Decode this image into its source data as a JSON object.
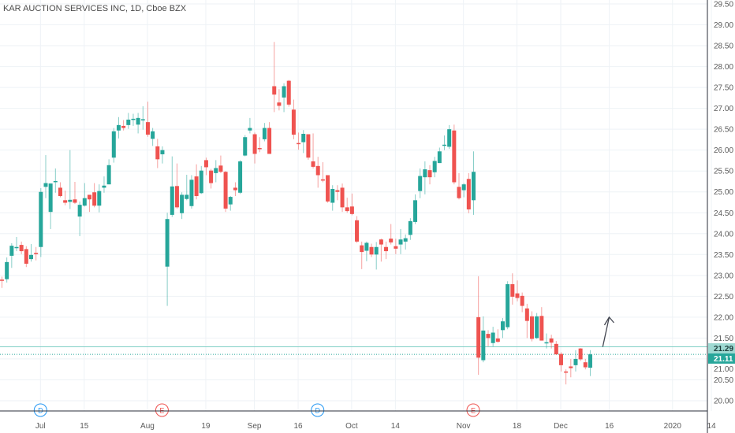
{
  "header": {
    "title": "KAR AUCTION SERVICES INC, 1D, Cboe BZX"
  },
  "colors": {
    "up": "#26a69a",
    "down": "#ef5350",
    "grid": "#eef2f6",
    "line_drawn": "#7fcfc6",
    "arrow": "#434651",
    "dividend": "#2196f3",
    "earnings": "#ef5350"
  },
  "chart_data": {
    "type": "candlestick",
    "title": "KAR AUCTION SERVICES INC, 1D, Cboe BZX",
    "ylim": [
      19.6,
      29.6
    ],
    "y_ticks": [
      "20.00",
      "20.50",
      "21.00",
      "21.50",
      "22.00",
      "22.50",
      "23.00",
      "23.50",
      "24.00",
      "24.50",
      "25.00",
      "25.50",
      "26.00",
      "26.50",
      "27.00",
      "27.50",
      "28.00",
      "28.50",
      "29.00",
      "29.50"
    ],
    "x_ticks": [
      {
        "label": "Jul",
        "date": "2019-07-01"
      },
      {
        "label": "15",
        "date": "2019-07-15"
      },
      {
        "label": "Aug",
        "date": "2019-08-01"
      },
      {
        "label": "19",
        "date": "2019-08-19"
      },
      {
        "label": "Sep",
        "date": "2019-09-03"
      },
      {
        "label": "16",
        "date": "2019-09-16"
      },
      {
        "label": "Oct",
        "date": "2019-10-01"
      },
      {
        "label": "14",
        "date": "2019-10-14"
      },
      {
        "label": "Nov",
        "date": "2019-11-01"
      },
      {
        "label": "18",
        "date": "2019-11-18"
      },
      {
        "label": "Dec",
        "date": "2019-12-02"
      },
      {
        "label": "16",
        "date": "2019-12-16"
      },
      {
        "label": "2020",
        "date": "2020-01-02"
      },
      {
        "label": "14",
        "date": "2020-01-14"
      }
    ],
    "columns": [
      "date",
      "open",
      "high",
      "low",
      "close"
    ],
    "candles": [
      [
        "2019-06-19",
        22.9,
        22.97,
        22.7,
        22.87
      ],
      [
        "2019-06-20",
        22.91,
        23.43,
        22.83,
        23.32
      ],
      [
        "2019-06-21",
        23.47,
        23.77,
        23.18,
        23.71
      ],
      [
        "2019-06-24",
        23.66,
        23.92,
        23.58,
        23.68
      ],
      [
        "2019-06-25",
        23.73,
        23.81,
        23.51,
        23.58
      ],
      [
        "2019-06-26",
        23.63,
        23.7,
        23.2,
        23.28
      ],
      [
        "2019-06-27",
        23.39,
        23.75,
        23.33,
        23.49
      ],
      [
        "2019-06-28",
        23.54,
        23.68,
        23.36,
        23.51
      ],
      [
        "2019-07-01",
        23.68,
        25.09,
        23.44,
        25.0
      ],
      [
        "2019-07-02",
        25.12,
        25.88,
        24.85,
        25.21
      ],
      [
        "2019-07-03",
        24.52,
        25.2,
        24.11,
        25.2
      ],
      [
        "2019-07-05",
        25.24,
        25.56,
        24.98,
        25.26
      ],
      [
        "2019-07-08",
        25.1,
        25.23,
        24.87,
        24.9
      ],
      [
        "2019-07-09",
        24.8,
        25.03,
        24.68,
        24.74
      ],
      [
        "2019-07-10",
        24.76,
        26.0,
        24.59,
        24.81
      ],
      [
        "2019-07-11",
        24.82,
        25.24,
        24.71,
        24.74
      ],
      [
        "2019-07-12",
        24.41,
        24.77,
        23.94,
        24.69
      ],
      [
        "2019-07-15",
        24.67,
        25.21,
        24.65,
        24.85
      ],
      [
        "2019-07-16",
        24.93,
        24.93,
        24.52,
        24.82
      ],
      [
        "2019-07-17",
        24.99,
        25.21,
        24.63,
        24.67
      ],
      [
        "2019-07-18",
        24.67,
        25.18,
        24.51,
        25.02
      ],
      [
        "2019-07-19",
        25.1,
        25.37,
        24.98,
        25.15
      ],
      [
        "2019-07-22",
        25.18,
        25.78,
        25.18,
        25.64
      ],
      [
        "2019-07-23",
        25.82,
        26.53,
        25.7,
        26.45
      ],
      [
        "2019-07-24",
        26.47,
        26.79,
        26.28,
        26.6
      ],
      [
        "2019-07-25",
        26.58,
        26.72,
        26.47,
        26.53
      ],
      [
        "2019-07-26",
        26.6,
        26.89,
        26.51,
        26.73
      ],
      [
        "2019-07-29",
        26.73,
        26.87,
        26.58,
        26.75
      ],
      [
        "2019-07-30",
        26.61,
        26.89,
        26.4,
        26.77
      ],
      [
        "2019-07-31",
        26.72,
        27.05,
        26.49,
        26.74
      ],
      [
        "2019-08-01",
        26.67,
        27.16,
        26.32,
        26.37
      ],
      [
        "2019-08-02",
        26.27,
        26.53,
        26.1,
        26.45
      ],
      [
        "2019-08-05",
        26.09,
        26.27,
        25.57,
        25.78
      ],
      [
        "2019-08-06",
        25.9,
        26.09,
        25.68,
        26.0
      ],
      [
        "2019-08-07",
        23.21,
        24.5,
        22.27,
        24.35
      ],
      [
        "2019-08-08",
        24.45,
        25.85,
        24.4,
        25.13
      ],
      [
        "2019-08-09",
        25.14,
        25.68,
        24.6,
        24.63
      ],
      [
        "2019-08-12",
        24.49,
        24.99,
        24.35,
        24.93
      ],
      [
        "2019-08-13",
        24.83,
        25.41,
        24.8,
        24.93
      ],
      [
        "2019-08-14",
        24.66,
        25.4,
        24.6,
        25.29
      ],
      [
        "2019-08-15",
        25.37,
        25.66,
        24.82,
        24.9
      ],
      [
        "2019-08-16",
        24.97,
        25.62,
        24.95,
        25.51
      ],
      [
        "2019-08-19",
        25.76,
        25.82,
        25.4,
        25.59
      ],
      [
        "2019-08-20",
        25.51,
        25.55,
        25.08,
        25.21
      ],
      [
        "2019-08-21",
        25.45,
        25.76,
        25.23,
        25.57
      ],
      [
        "2019-08-22",
        25.63,
        25.87,
        25.45,
        25.48
      ],
      [
        "2019-08-23",
        25.48,
        25.5,
        24.52,
        24.6
      ],
      [
        "2019-08-26",
        24.7,
        24.9,
        24.55,
        24.88
      ],
      [
        "2019-08-27",
        25.1,
        25.23,
        24.9,
        25.04
      ],
      [
        "2019-08-28",
        24.98,
        25.76,
        24.95,
        25.73
      ],
      [
        "2019-08-29",
        25.87,
        26.36,
        25.85,
        26.31
      ],
      [
        "2019-08-30",
        26.47,
        26.77,
        26.4,
        26.53
      ],
      [
        "2019-09-03",
        26.38,
        26.42,
        25.68,
        25.91
      ],
      [
        "2019-09-04",
        26.05,
        26.31,
        25.95,
        26.03
      ],
      [
        "2019-09-05",
        26.26,
        26.65,
        26.21,
        26.53
      ],
      [
        "2019-09-06",
        26.53,
        26.67,
        25.91,
        25.91
      ],
      [
        "2019-09-09",
        27.53,
        28.59,
        26.91,
        27.33
      ],
      [
        "2019-09-10",
        27.14,
        27.46,
        26.95,
        27.06
      ],
      [
        "2019-09-11",
        27.26,
        27.6,
        26.91,
        27.53
      ],
      [
        "2019-09-12",
        27.66,
        27.68,
        27.04,
        27.09
      ],
      [
        "2019-09-13",
        26.97,
        27.21,
        26.26,
        26.37
      ],
      [
        "2019-09-16",
        26.17,
        26.42,
        26.01,
        26.15
      ],
      [
        "2019-09-17",
        26.19,
        26.48,
        25.93,
        26.39
      ],
      [
        "2019-09-18",
        26.38,
        26.38,
        25.77,
        25.82
      ],
      [
        "2019-09-19",
        25.73,
        26.4,
        25.56,
        25.6
      ],
      [
        "2019-09-20",
        25.62,
        25.84,
        25.1,
        25.4
      ],
      [
        "2019-09-23",
        25.3,
        25.71,
        25.23,
        25.27
      ],
      [
        "2019-09-24",
        25.4,
        25.4,
        24.74,
        24.77
      ],
      [
        "2019-09-25",
        24.74,
        25.16,
        24.55,
        25.07
      ],
      [
        "2019-09-26",
        25.04,
        25.16,
        24.8,
        25.0
      ],
      [
        "2019-09-27",
        25.1,
        25.2,
        24.52,
        24.63
      ],
      [
        "2019-09-30",
        24.63,
        24.86,
        24.5,
        24.54
      ],
      [
        "2019-10-01",
        24.65,
        24.96,
        24.44,
        24.47
      ],
      [
        "2019-10-02",
        24.32,
        24.42,
        23.78,
        23.81
      ],
      [
        "2019-10-03",
        23.72,
        23.81,
        23.15,
        23.56
      ],
      [
        "2019-10-04",
        23.59,
        23.81,
        23.34,
        23.78
      ],
      [
        "2019-10-07",
        23.68,
        23.76,
        23.44,
        23.5
      ],
      [
        "2019-10-08",
        23.5,
        23.8,
        23.14,
        23.68
      ],
      [
        "2019-10-09",
        23.86,
        23.88,
        23.33,
        23.74
      ],
      [
        "2019-10-10",
        23.68,
        23.81,
        23.39,
        23.58
      ],
      [
        "2019-10-11",
        23.88,
        24.23,
        23.74,
        23.79
      ],
      [
        "2019-10-14",
        23.7,
        23.88,
        23.51,
        23.64
      ],
      [
        "2019-10-15",
        23.74,
        24.11,
        23.51,
        23.86
      ],
      [
        "2019-10-16",
        23.81,
        23.98,
        23.62,
        23.89
      ],
      [
        "2019-10-17",
        23.97,
        24.37,
        23.85,
        24.3
      ],
      [
        "2019-10-18",
        24.28,
        24.94,
        24.23,
        24.8
      ],
      [
        "2019-10-21",
        25.02,
        25.56,
        24.85,
        25.38
      ],
      [
        "2019-10-22",
        25.35,
        25.73,
        24.94,
        25.54
      ],
      [
        "2019-10-23",
        25.52,
        25.64,
        25.18,
        25.35
      ],
      [
        "2019-10-24",
        25.47,
        25.84,
        25.35,
        25.74
      ],
      [
        "2019-10-25",
        25.69,
        26.06,
        25.69,
        25.97
      ],
      [
        "2019-10-28",
        26.11,
        26.35,
        26.0,
        26.13
      ],
      [
        "2019-10-29",
        26.08,
        26.6,
        26.03,
        26.5
      ],
      [
        "2019-10-30",
        26.47,
        26.61,
        25.18,
        25.23
      ],
      [
        "2019-10-31",
        25.12,
        25.45,
        24.82,
        24.85
      ],
      [
        "2019-11-01",
        25.04,
        25.21,
        24.87,
        25.18
      ],
      [
        "2019-11-04",
        25.31,
        25.45,
        24.49,
        24.58
      ],
      [
        "2019-11-05",
        24.8,
        25.97,
        24.45,
        25.48
      ],
      [
        "2019-11-06",
        22.0,
        22.98,
        20.62,
        21.03
      ],
      [
        "2019-11-07",
        20.97,
        22.02,
        20.92,
        21.68
      ],
      [
        "2019-11-08",
        21.6,
        21.69,
        21.3,
        21.5
      ],
      [
        "2019-11-11",
        21.38,
        21.77,
        21.3,
        21.63
      ],
      [
        "2019-11-12",
        21.49,
        21.71,
        21.39,
        21.41
      ],
      [
        "2019-11-13",
        21.69,
        21.98,
        21.5,
        21.9
      ],
      [
        "2019-11-14",
        21.76,
        22.86,
        21.71,
        22.79
      ],
      [
        "2019-11-15",
        22.79,
        23.05,
        22.3,
        22.49
      ],
      [
        "2019-11-18",
        22.57,
        22.88,
        22.38,
        22.46
      ],
      [
        "2019-11-19",
        22.51,
        22.59,
        22.12,
        22.27
      ],
      [
        "2019-11-20",
        22.21,
        22.32,
        21.5,
        21.91
      ],
      [
        "2019-11-21",
        22.02,
        22.14,
        21.42,
        21.48
      ],
      [
        "2019-11-22",
        21.5,
        22.1,
        21.48,
        22.02
      ],
      [
        "2019-11-25",
        22.03,
        22.24,
        21.44,
        21.44
      ],
      [
        "2019-11-26",
        21.38,
        21.61,
        21.25,
        21.4
      ],
      [
        "2019-11-27",
        21.49,
        21.58,
        21.25,
        21.39
      ],
      [
        "2019-11-29",
        21.36,
        21.43,
        21.1,
        21.11
      ],
      [
        "2019-12-02",
        21.12,
        21.16,
        20.7,
        20.85
      ],
      [
        "2019-12-03",
        20.7,
        20.75,
        20.39,
        20.67
      ],
      [
        "2019-12-04",
        20.82,
        21.0,
        20.56,
        20.78
      ],
      [
        "2019-12-05",
        20.85,
        21.21,
        20.7,
        21.0
      ],
      [
        "2019-12-06",
        21.25,
        21.26,
        20.95,
        20.99
      ],
      [
        "2019-12-09",
        20.92,
        21.0,
        20.75,
        20.8
      ],
      [
        "2019-12-10",
        20.79,
        21.21,
        20.59,
        21.11
      ]
    ],
    "horizontal_lines": [
      {
        "price": 21.29,
        "label": "21.29",
        "style": "solid"
      },
      {
        "price": 21.11,
        "label": "21.11",
        "style": "dotted",
        "last_price": true
      }
    ],
    "arrow": {
      "from_price": 21.29,
      "to_price": 22.0,
      "from_date": "2019-12-12",
      "to_date": "2019-12-13"
    },
    "events": [
      {
        "type": "dividend",
        "label": "D",
        "date": "2019-07-01"
      },
      {
        "type": "earnings",
        "label": "E",
        "date": "2019-08-06"
      },
      {
        "type": "dividend",
        "label": "D",
        "date": "2019-09-20"
      },
      {
        "type": "earnings",
        "label": "E",
        "date": "2019-11-05"
      }
    ],
    "grid": true
  }
}
